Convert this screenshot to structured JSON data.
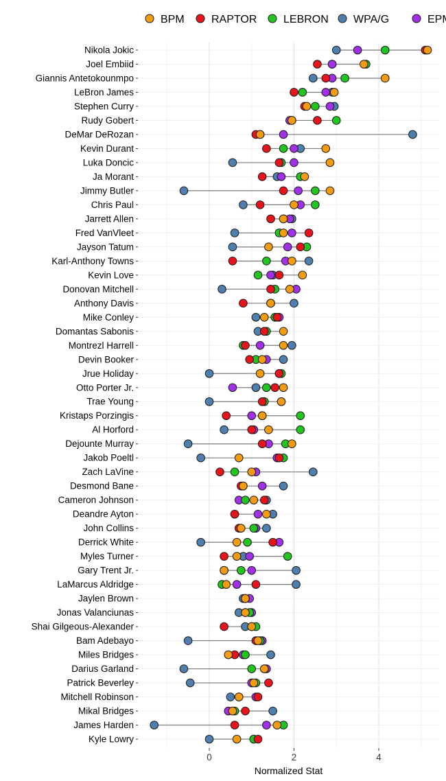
{
  "chart_data": {
    "type": "scatter",
    "subtype": "dot-range",
    "xlabel": "Normalized Stat",
    "xlim": [
      -1.65,
      5.3
    ],
    "xticks": [
      0,
      2,
      4
    ],
    "grid": true,
    "legend_position": "top",
    "series": [
      {
        "name": "BPM",
        "color": "#F39C12"
      },
      {
        "name": "RAPTOR",
        "color": "#E8141C"
      },
      {
        "name": "LEBRON",
        "color": "#22C41F"
      },
      {
        "name": "WPA/G",
        "color": "#4E7FAE"
      },
      {
        "name": "EPM",
        "color": "#A230E8"
      }
    ],
    "players": [
      {
        "name": "Nikola Jokic",
        "values": [
          5.15,
          5.1,
          4.15,
          3.0,
          3.5
        ]
      },
      {
        "name": "Joel Embiid",
        "values": [
          3.65,
          2.55,
          3.7,
          2.9,
          2.9
        ]
      },
      {
        "name": "Giannis Antetokounmpo",
        "values": [
          4.15,
          2.75,
          3.2,
          2.45,
          2.9
        ]
      },
      {
        "name": "LeBron James",
        "values": [
          2.95,
          2.0,
          2.2,
          2.9,
          2.75
        ]
      },
      {
        "name": "Stephen Curry",
        "values": [
          2.3,
          2.25,
          2.5,
          2.95,
          2.85
        ]
      },
      {
        "name": "Rudy Gobert",
        "values": [
          1.95,
          2.55,
          3.0,
          1.95,
          1.9
        ]
      },
      {
        "name": "DeMar DeRozan",
        "values": [
          1.2,
          1.1,
          1.2,
          4.8,
          1.75
        ]
      },
      {
        "name": "Kevin Durant",
        "values": [
          2.75,
          1.35,
          1.75,
          2.15,
          2.0
        ]
      },
      {
        "name": "Luka Doncic",
        "values": [
          2.85,
          1.65,
          1.7,
          0.55,
          2.0
        ]
      },
      {
        "name": "Ja Morant",
        "values": [
          2.25,
          1.25,
          2.15,
          1.6,
          1.7
        ]
      },
      {
        "name": "Jimmy Butler",
        "values": [
          2.85,
          1.75,
          2.5,
          -0.6,
          2.1
        ]
      },
      {
        "name": "Chris Paul",
        "values": [
          2.0,
          1.2,
          2.5,
          0.8,
          2.15
        ]
      },
      {
        "name": "Jarrett Allen",
        "values": [
          1.75,
          1.45,
          1.75,
          1.95,
          1.9
        ]
      },
      {
        "name": "Fred VanVleet",
        "values": [
          1.75,
          2.35,
          1.65,
          0.6,
          1.95
        ]
      },
      {
        "name": "Jayson Tatum",
        "values": [
          1.4,
          2.15,
          2.3,
          0.55,
          1.85
        ]
      },
      {
        "name": "Karl-Anthony Towns",
        "values": [
          1.95,
          0.55,
          1.35,
          2.35,
          1.8
        ]
      },
      {
        "name": "Kevin Love",
        "values": [
          2.2,
          1.65,
          1.15,
          1.5,
          1.45
        ]
      },
      {
        "name": "Donovan Mitchell",
        "values": [
          1.9,
          1.45,
          1.55,
          0.3,
          2.05
        ]
      },
      {
        "name": "Anthony Davis",
        "values": [
          1.45,
          0.8,
          1.45,
          2.0,
          1.45
        ]
      },
      {
        "name": "Mike Conley",
        "values": [
          1.3,
          1.6,
          1.55,
          1.1,
          1.65
        ]
      },
      {
        "name": "Domantas Sabonis",
        "values": [
          1.75,
          1.3,
          1.35,
          1.15,
          1.3
        ]
      },
      {
        "name": "Montrezl Harrell",
        "values": [
          1.75,
          0.85,
          0.8,
          1.95,
          1.2
        ]
      },
      {
        "name": "Devin Booker",
        "values": [
          1.25,
          0.95,
          1.1,
          1.75,
          1.35
        ]
      },
      {
        "name": "Jrue Holiday",
        "values": [
          1.2,
          1.65,
          1.7,
          0.0,
          1.65
        ]
      },
      {
        "name": "Otto Porter Jr.",
        "values": [
          1.75,
          1.55,
          1.35,
          1.1,
          0.55
        ]
      },
      {
        "name": "Trae Young",
        "values": [
          1.7,
          1.25,
          1.3,
          0.0,
          1.7
        ]
      },
      {
        "name": "Kristaps Porzingis",
        "values": [
          1.25,
          0.4,
          2.15,
          1.25,
          1.0
        ]
      },
      {
        "name": "Al Horford",
        "values": [
          1.4,
          1.0,
          2.15,
          0.35,
          1.05
        ]
      },
      {
        "name": "Dejounte Murray",
        "values": [
          1.95,
          1.25,
          1.8,
          -0.5,
          1.4
        ]
      },
      {
        "name": "Jakob Poeltl",
        "values": [
          0.7,
          1.65,
          1.75,
          -0.2,
          1.6
        ]
      },
      {
        "name": "Zach LaVine",
        "values": [
          1.0,
          0.25,
          0.6,
          2.45,
          1.1
        ]
      },
      {
        "name": "Desmond Bane",
        "values": [
          0.8,
          0.75,
          0.8,
          1.75,
          1.25
        ]
      },
      {
        "name": "Cameron Johnson",
        "values": [
          1.05,
          1.3,
          0.85,
          1.35,
          0.7
        ]
      },
      {
        "name": "Deandre Ayton",
        "values": [
          1.35,
          0.6,
          0.6,
          1.5,
          1.15
        ]
      },
      {
        "name": "John Collins",
        "values": [
          0.75,
          0.7,
          1.05,
          1.35,
          1.1
        ]
      },
      {
        "name": "Derrick White",
        "values": [
          0.65,
          1.5,
          0.9,
          -0.2,
          1.65
        ]
      },
      {
        "name": "Myles Turner",
        "values": [
          0.65,
          0.35,
          1.85,
          0.8,
          0.95
        ]
      },
      {
        "name": "Gary Trent Jr.",
        "values": [
          0.35,
          0.35,
          0.75,
          2.05,
          1.0
        ]
      },
      {
        "name": "LaMarcus Aldridge",
        "values": [
          0.4,
          1.1,
          0.3,
          2.05,
          0.65
        ]
      },
      {
        "name": "Jaylen Brown",
        "values": [
          0.85,
          0.85,
          0.85,
          0.8,
          0.95
        ]
      },
      {
        "name": "Jonas Valanciunas",
        "values": [
          0.85,
          0.85,
          0.95,
          0.7,
          1.0
        ]
      },
      {
        "name": "Shai Gilgeous-Alexander",
        "values": [
          1.0,
          0.35,
          1.1,
          0.85,
          1.0
        ]
      },
      {
        "name": "Bam Adebayo",
        "values": [
          1.15,
          1.1,
          1.2,
          -0.5,
          1.25
        ]
      },
      {
        "name": "Miles Bridges",
        "values": [
          0.45,
          0.6,
          0.85,
          1.45,
          0.8
        ]
      },
      {
        "name": "Darius Garland",
        "values": [
          1.3,
          1.3,
          1.0,
          -0.6,
          1.35
        ]
      },
      {
        "name": "Patrick Beverley",
        "values": [
          1.05,
          1.4,
          1.1,
          -0.45,
          1.0
        ]
      },
      {
        "name": "Mitchell Robinson",
        "values": [
          0.7,
          1.15,
          0.7,
          0.5,
          1.1
        ]
      },
      {
        "name": "Mikal Bridges",
        "values": [
          0.55,
          0.85,
          0.6,
          1.5,
          0.45
        ]
      },
      {
        "name": "James Harden",
        "values": [
          1.6,
          0.6,
          1.75,
          -1.3,
          1.35
        ]
      },
      {
        "name": "Kyle Lowry",
        "values": [
          0.65,
          1.15,
          1.05,
          0.0,
          1.05
        ]
      }
    ]
  }
}
